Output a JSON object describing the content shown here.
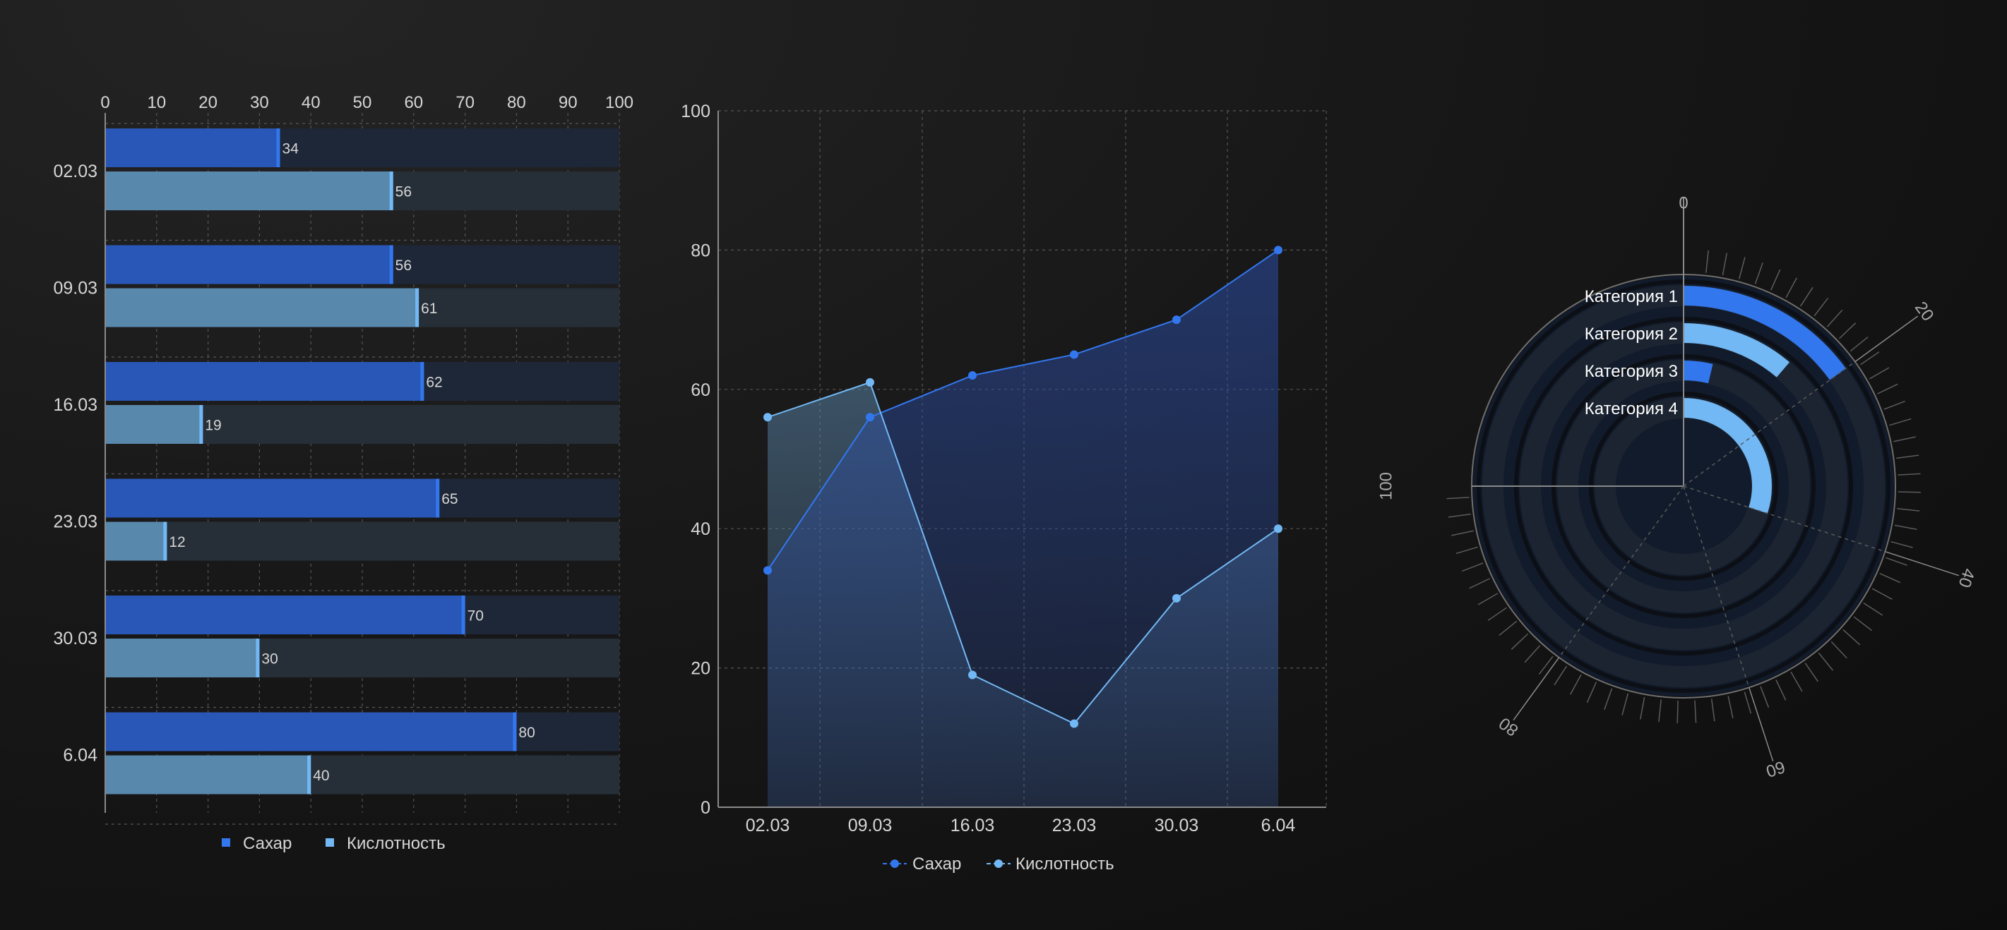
{
  "colors": {
    "sugar": "#3377ee",
    "acidity": "#72b8f4",
    "bar_sugar_fill": "#2957b7",
    "bar_acid_fill": "#5988ad",
    "track_sugar": "#1e2738",
    "track_acid": "#262f38",
    "text": "#d6d6d6",
    "grid": "#565656"
  },
  "chart_data": [
    {
      "type": "bar",
      "orientation": "horizontal",
      "categories": [
        "02.03",
        "09.03",
        "16.03",
        "23.03",
        "30.03",
        "6.04"
      ],
      "series": [
        {
          "name": "Сахар",
          "values": [
            34,
            56,
            62,
            65,
            70,
            80
          ]
        },
        {
          "name": "Кислотность",
          "values": [
            56,
            61,
            19,
            12,
            30,
            40
          ]
        }
      ],
      "xlim": [
        0,
        100
      ],
      "x_ticks": [
        0,
        10,
        20,
        30,
        40,
        50,
        60,
        70,
        80,
        90,
        100
      ],
      "x_axis_position": "top",
      "grid": true,
      "data_labels": true,
      "legend": "bottom"
    },
    {
      "type": "area",
      "categories": [
        "02.03",
        "09.03",
        "16.03",
        "23.03",
        "30.03",
        "6.04"
      ],
      "series": [
        {
          "name": "Сахар",
          "values": [
            34,
            56,
            62,
            65,
            70,
            80
          ]
        },
        {
          "name": "Кислотность",
          "values": [
            56,
            61,
            19,
            12,
            30,
            40
          ]
        }
      ],
      "ylim": [
        0,
        100
      ],
      "y_ticks": [
        0,
        20,
        40,
        60,
        80,
        100
      ],
      "grid": true,
      "legend": "bottom"
    },
    {
      "type": "radial-bar",
      "categories": [
        "Категория 1",
        "Категория 2",
        "Категория 3",
        "Категория 4"
      ],
      "values": [
        20,
        15,
        5,
        40
      ],
      "range": [
        0,
        100
      ],
      "ticks": [
        "0",
        "20",
        "40",
        "60",
        "80",
        "100"
      ],
      "sweep_degrees": 270,
      "grid": true
    }
  ]
}
